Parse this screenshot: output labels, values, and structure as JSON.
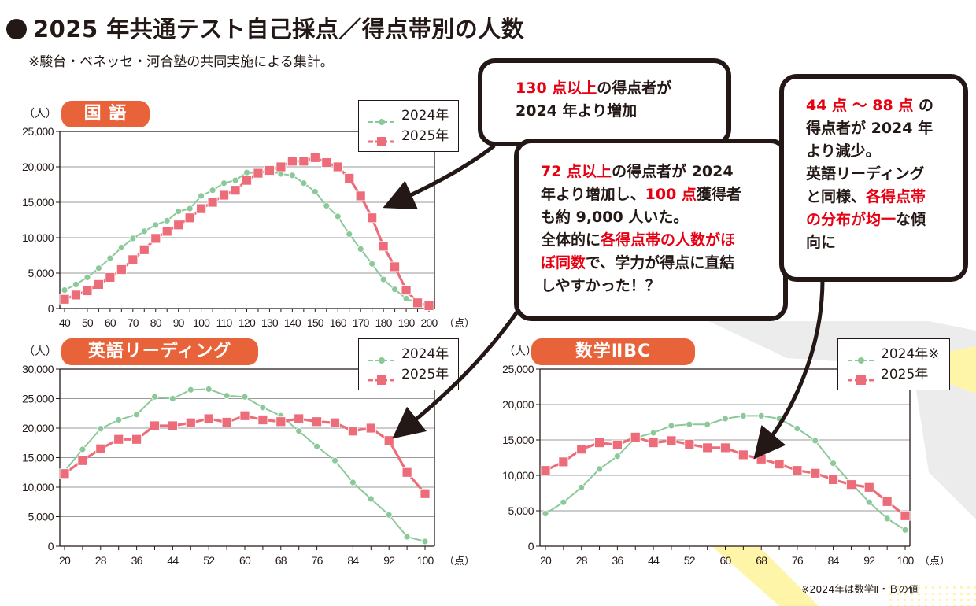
{
  "header": {
    "title": "2025 年共通テスト自己採点／得点帯別の人数",
    "subtitle": "※駿台・ベネッセ・河合塾の共同実施による集計。"
  },
  "colors": {
    "series_2024": "#8cc99a",
    "series_2025": "#ed6c7a",
    "pill": "#e9633a",
    "highlight_text": "#e60012",
    "ink": "#231815"
  },
  "bubbles": [
    {
      "id": "japanese-note",
      "lines": [
        [
          {
            "t": "130 点以上",
            "red": true
          },
          {
            "t": "の得点者が",
            "red": false
          }
        ],
        [
          {
            "t": "2024 年より増加",
            "red": false
          }
        ]
      ]
    },
    {
      "id": "english-note",
      "lines": [
        [
          {
            "t": "72 点以上",
            "red": true
          },
          {
            "t": "の得点者が 2024",
            "red": false
          }
        ],
        [
          {
            "t": "年より増加し、",
            "red": false
          },
          {
            "t": "100 点",
            "red": true
          },
          {
            "t": "獲得者",
            "red": false
          }
        ],
        [
          {
            "t": "も約 9,000 人いた。",
            "red": false
          }
        ],
        [
          {
            "t": "全体的に",
            "red": false
          },
          {
            "t": "各得点帯の人数がほ",
            "red": true
          }
        ],
        [
          {
            "t": "ぼ同数",
            "red": true
          },
          {
            "t": "で、学力が得点に直結",
            "red": false
          }
        ],
        [
          {
            "t": "しやすかった！？",
            "red": false
          }
        ]
      ]
    },
    {
      "id": "math-note",
      "lines": [
        [
          {
            "t": "44 点 ～ 88 点",
            "red": true
          },
          {
            "t": " の",
            "red": false
          }
        ],
        [
          {
            "t": "得点者が 2024 年",
            "red": false
          }
        ],
        [
          {
            "t": "より減少。",
            "red": false
          }
        ],
        [
          {
            "t": "英語リーディング",
            "red": false
          }
        ],
        [
          {
            "t": "と同様、",
            "red": false
          },
          {
            "t": "各得点帯",
            "red": true
          }
        ],
        [
          {
            "t": "の分布が均一",
            "red": true
          },
          {
            "t": "な傾",
            "red": false
          }
        ],
        [
          {
            "t": "向に",
            "red": false
          }
        ]
      ]
    }
  ],
  "chart_data": [
    {
      "type": "line",
      "title": "国 語",
      "ylabel": "（人）",
      "xlabel": "（点）",
      "ylim": [
        0,
        25000
      ],
      "yticks": [
        0,
        5000,
        10000,
        15000,
        20000,
        25000
      ],
      "ytick_labels": [
        "0",
        "5,000",
        "10,000",
        "15,000",
        "20,000",
        "25,000"
      ],
      "xlim": [
        40,
        200
      ],
      "xtick_labels": [
        "40",
        "50",
        "60",
        "70",
        "80",
        "90",
        "100",
        "110",
        "120",
        "130",
        "140",
        "150",
        "160",
        "170",
        "180",
        "190",
        "200"
      ],
      "grid": true,
      "legend_position": "top-right",
      "x": [
        40,
        45,
        50,
        55,
        60,
        65,
        70,
        75,
        80,
        85,
        90,
        95,
        100,
        105,
        110,
        115,
        120,
        125,
        130,
        135,
        140,
        145,
        150,
        155,
        160,
        165,
        170,
        175,
        180,
        185,
        190,
        195,
        200
      ],
      "series": [
        {
          "name": "2024年",
          "marker": "circle",
          "values": [
            2600,
            3400,
            4400,
            5700,
            7100,
            8600,
            9900,
            10900,
            11800,
            12400,
            13700,
            14100,
            15900,
            16700,
            17700,
            18100,
            19200,
            19100,
            19400,
            19000,
            18800,
            17700,
            16500,
            14500,
            13000,
            10500,
            8400,
            6300,
            4100,
            2700,
            1400,
            800,
            400
          ]
        },
        {
          "name": "2025年",
          "marker": "square",
          "values": [
            1300,
            1900,
            2500,
            3400,
            4400,
            5500,
            6900,
            8300,
            9900,
            10900,
            11800,
            12800,
            14100,
            15000,
            16000,
            16700,
            18100,
            19100,
            19500,
            20000,
            20800,
            20800,
            21300,
            20600,
            20000,
            18400,
            15900,
            12800,
            8800,
            5900,
            2600,
            800,
            400
          ]
        }
      ]
    },
    {
      "type": "line",
      "title": "英語リーディング",
      "ylabel": "（人）",
      "xlabel": "（点）",
      "ylim": [
        0,
        30000
      ],
      "yticks": [
        0,
        5000,
        10000,
        15000,
        20000,
        25000,
        30000
      ],
      "ytick_labels": [
        "0",
        "5,000",
        "10,000",
        "15,000",
        "20,000",
        "25,000",
        "30,000"
      ],
      "xlim": [
        20,
        100
      ],
      "xtick_labels": [
        "20",
        "28",
        "36",
        "44",
        "52",
        "60",
        "68",
        "76",
        "84",
        "92",
        "100"
      ],
      "grid": true,
      "legend_position": "top-right",
      "x": [
        20,
        24,
        28,
        32,
        36,
        40,
        44,
        48,
        52,
        56,
        60,
        64,
        68,
        72,
        76,
        80,
        84,
        88,
        92,
        96,
        100
      ],
      "series": [
        {
          "name": "2024年",
          "marker": "circle",
          "values": [
            12700,
            16400,
            19900,
            21400,
            22300,
            25300,
            25000,
            26500,
            26600,
            25500,
            25300,
            23500,
            22100,
            19500,
            16900,
            14500,
            10800,
            8000,
            5300,
            1600,
            800
          ]
        },
        {
          "name": "2025年",
          "marker": "square",
          "values": [
            12300,
            14500,
            16500,
            18100,
            18100,
            20400,
            20400,
            20900,
            21600,
            21000,
            22100,
            21400,
            21100,
            21600,
            21100,
            20900,
            19500,
            20000,
            17900,
            12500,
            8900
          ]
        }
      ]
    },
    {
      "type": "line",
      "title": "数学ⅡBC",
      "ylabel": "（人）",
      "xlabel": "（点）",
      "ylim": [
        0,
        25000
      ],
      "yticks": [
        0,
        5000,
        10000,
        15000,
        20000,
        25000
      ],
      "ytick_labels": [
        "0",
        "5,000",
        "10,000",
        "15,000",
        "20,000",
        "25,000"
      ],
      "xlim": [
        20,
        100
      ],
      "xtick_labels": [
        "20",
        "28",
        "36",
        "44",
        "52",
        "60",
        "68",
        "76",
        "84",
        "92",
        "100"
      ],
      "grid": true,
      "legend_position": "top-right",
      "note": "※2024年は数学Ⅱ・Ｂの値",
      "x": [
        20,
        24,
        28,
        32,
        36,
        40,
        44,
        48,
        52,
        56,
        60,
        64,
        68,
        72,
        76,
        80,
        84,
        88,
        92,
        96,
        100
      ],
      "series": [
        {
          "name": "2024年※",
          "marker": "circle",
          "values": [
            4600,
            6200,
            8300,
            10900,
            12700,
            15300,
            16000,
            17000,
            17200,
            17200,
            18000,
            18400,
            18400,
            18000,
            16600,
            14900,
            11700,
            8900,
            6200,
            3900,
            2300
          ]
        },
        {
          "name": "2025年",
          "marker": "square",
          "values": [
            10700,
            11900,
            13700,
            14600,
            14300,
            15400,
            14600,
            14900,
            14400,
            13900,
            13900,
            12900,
            12300,
            11600,
            10700,
            10300,
            9400,
            8700,
            8300,
            6300,
            4300
          ]
        }
      ]
    }
  ]
}
